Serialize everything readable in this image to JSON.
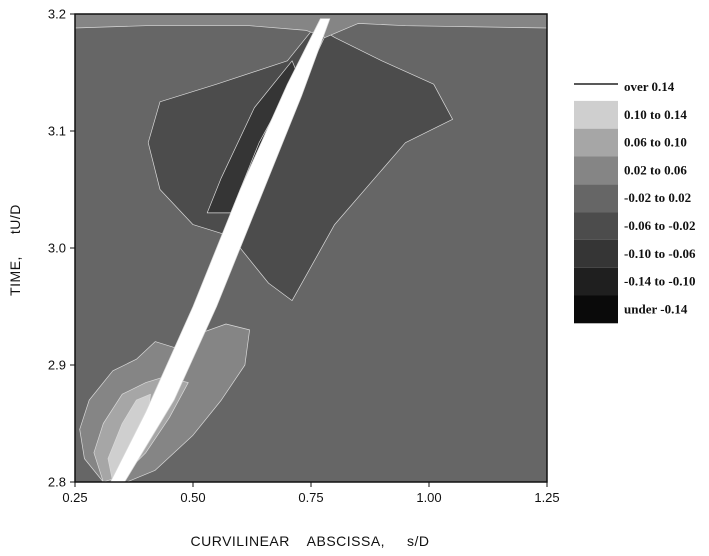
{
  "chart_data": {
    "type": "heatmap",
    "xlabel": "CURVILINEAR    ABSCISSA,     s/D",
    "ylabel": "TIME,     tU/D",
    "xlim": [
      0.25,
      1.25
    ],
    "ylim": [
      2.8,
      3.2
    ],
    "x_ticks": [
      "0.25",
      "0.50",
      "0.75",
      "1.00",
      "1.25"
    ],
    "x_tick_values": [
      0.25,
      0.5,
      0.75,
      1.0,
      1.25
    ],
    "y_ticks": [
      "2.8",
      "2.9",
      "3.0",
      "3.1",
      "3.2"
    ],
    "y_tick_values": [
      2.8,
      2.9,
      3.0,
      3.1,
      3.2
    ],
    "background_level": "-0.02 to 0.02",
    "legend": {
      "placement": "right",
      "entries": [
        {
          "label": "over 0.14",
          "color": "#ffffff"
        },
        {
          "label": "0.10 to 0.14",
          "color": "#cfcfcf"
        },
        {
          "label": "0.06 to 0.10",
          "color": "#a6a6a6"
        },
        {
          "label": "0.02 to 0.06",
          "color": "#858585"
        },
        {
          "label": "-0.02 to 0.02",
          "color": "#666666"
        },
        {
          "label": "-0.06 to -0.02",
          "color": "#4c4c4c"
        },
        {
          "label": "-0.10 to -0.06",
          "color": "#353535"
        },
        {
          "label": "-0.14 to -0.10",
          "color": "#1f1f1f"
        },
        {
          "label": "under -0.14",
          "color": "#0a0a0a"
        }
      ]
    }
  }
}
